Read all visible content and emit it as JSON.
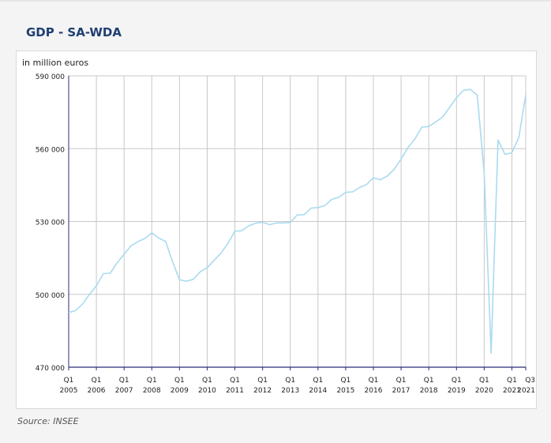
{
  "page": {
    "title": "GDP - SA-WDA",
    "source": "Source: INSEE"
  },
  "colors": {
    "line": "#a9dbef",
    "grid": "#c8c8c8",
    "axis": "#2b2b7a",
    "title": "#1f3f73"
  },
  "chart_data": {
    "type": "line",
    "title": "GDP - SA-WDA",
    "ylabel": "in million euros",
    "xlabel": "",
    "ylim": [
      470000,
      590000
    ],
    "yticks": [
      {
        "value": 470000,
        "label": "470 000"
      },
      {
        "value": 500000,
        "label": "500 000"
      },
      {
        "value": 530000,
        "label": "530 000"
      },
      {
        "value": 560000,
        "label": "560 000"
      },
      {
        "value": 590000,
        "label": "590 000"
      }
    ],
    "xticks": [
      {
        "index": 0,
        "top": "Q1",
        "bottom": "2005"
      },
      {
        "index": 4,
        "top": "Q1",
        "bottom": "2006"
      },
      {
        "index": 8,
        "top": "Q1",
        "bottom": "2007"
      },
      {
        "index": 12,
        "top": "Q1",
        "bottom": "2008"
      },
      {
        "index": 16,
        "top": "Q1",
        "bottom": "2009"
      },
      {
        "index": 20,
        "top": "Q1",
        "bottom": "2010"
      },
      {
        "index": 24,
        "top": "Q1",
        "bottom": "2011"
      },
      {
        "index": 28,
        "top": "Q1",
        "bottom": "2012"
      },
      {
        "index": 32,
        "top": "Q1",
        "bottom": "2013"
      },
      {
        "index": 36,
        "top": "Q1",
        "bottom": "2014"
      },
      {
        "index": 40,
        "top": "Q1",
        "bottom": "2015"
      },
      {
        "index": 44,
        "top": "Q1",
        "bottom": "2016"
      },
      {
        "index": 48,
        "top": "Q1",
        "bottom": "2017"
      },
      {
        "index": 52,
        "top": "Q1",
        "bottom": "2018"
      },
      {
        "index": 56,
        "top": "Q1",
        "bottom": "2019"
      },
      {
        "index": 60,
        "top": "Q1",
        "bottom": "2020"
      },
      {
        "index": 64,
        "top": "Q1",
        "bottom": "2021"
      },
      {
        "index": 66,
        "top": "Q3",
        "bottom": "2021"
      }
    ],
    "series": [
      {
        "name": "GDP",
        "x": [
          "2005Q1",
          "2005Q2",
          "2005Q3",
          "2005Q4",
          "2006Q1",
          "2006Q2",
          "2006Q3",
          "2006Q4",
          "2007Q1",
          "2007Q2",
          "2007Q3",
          "2007Q4",
          "2008Q1",
          "2008Q2",
          "2008Q3",
          "2008Q4",
          "2009Q1",
          "2009Q2",
          "2009Q3",
          "2009Q4",
          "2010Q1",
          "2010Q2",
          "2010Q3",
          "2010Q4",
          "2011Q1",
          "2011Q2",
          "2011Q3",
          "2011Q4",
          "2012Q1",
          "2012Q2",
          "2012Q3",
          "2012Q4",
          "2013Q1",
          "2013Q2",
          "2013Q3",
          "2013Q4",
          "2014Q1",
          "2014Q2",
          "2014Q3",
          "2014Q4",
          "2015Q1",
          "2015Q2",
          "2015Q3",
          "2015Q4",
          "2016Q1",
          "2016Q2",
          "2016Q3",
          "2016Q4",
          "2017Q1",
          "2017Q2",
          "2017Q3",
          "2017Q4",
          "2018Q1",
          "2018Q2",
          "2018Q3",
          "2018Q4",
          "2019Q1",
          "2019Q2",
          "2019Q3",
          "2019Q4",
          "2020Q1",
          "2020Q2",
          "2020Q3",
          "2020Q4",
          "2021Q1",
          "2021Q2",
          "2021Q3"
        ],
        "values": [
          492500,
          493300,
          496000,
          500000,
          503500,
          508500,
          508700,
          513000,
          516500,
          520000,
          521700,
          523000,
          525300,
          523200,
          521800,
          513500,
          506000,
          505400,
          506200,
          509300,
          511000,
          514000,
          517000,
          521000,
          526000,
          526200,
          528200,
          529300,
          529700,
          528700,
          529400,
          529400,
          529600,
          532700,
          532800,
          535500,
          535700,
          536600,
          539100,
          540000,
          542000,
          542200,
          544000,
          545200,
          548000,
          547200,
          548700,
          551500,
          555700,
          560500,
          564000,
          568900,
          569100,
          571000,
          573000,
          577000,
          581000,
          584000,
          584400,
          582000,
          550000,
          475800,
          563600,
          557600,
          558300,
          564600,
          582100
        ]
      }
    ]
  }
}
